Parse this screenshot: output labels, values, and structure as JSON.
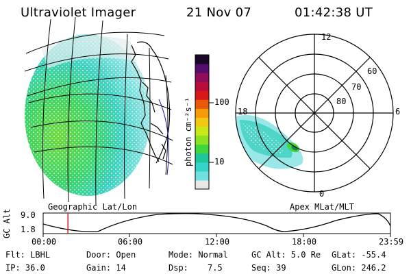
{
  "header": {
    "title": "Ultraviolet Imager",
    "date": "21 Nov 07",
    "time": "01:42:38 UT"
  },
  "colorbar": {
    "label": "photon cm⁻²s⁻¹",
    "ticks": [
      "100",
      "10"
    ],
    "colors": [
      "#e6e6e6",
      "#6ee0e0",
      "#35d3c8",
      "#1ec79a",
      "#3fd640",
      "#8be020",
      "#c8e818",
      "#f2c810",
      "#f59a08",
      "#e85a0a",
      "#d81818",
      "#b80d38",
      "#8e0d5c",
      "#560c6e",
      "#1a0626"
    ]
  },
  "polar": {
    "hour_labels": [
      "12",
      "18",
      "6",
      "0"
    ],
    "lat_labels": [
      "60",
      "70",
      "80"
    ]
  },
  "panel_labels": {
    "left": "Geographic Lat/Lon",
    "right": "Apex MLat/MLT"
  },
  "altitude_plot": {
    "ylabel": "GC Alt",
    "yticks": [
      "9.0",
      "1.8"
    ],
    "xticks": [
      "00:00",
      "06:00",
      "12:00",
      "18:00",
      "23:59"
    ],
    "marker_time_hours": 1.711
  },
  "status": {
    "flt": "Flt: LBHL",
    "ip": "IP: 36.0",
    "door": "Door: Open",
    "gain": "Gain: 14",
    "mode": "Mode: Normal",
    "dsp_label": "Dsp:",
    "dsp_value": "7.5",
    "gc_alt": "GC Alt: 5.0 Re",
    "seq": "Seq: 39",
    "glat": "GLat: -55.4",
    "glon": "GLon: 246.2"
  }
}
